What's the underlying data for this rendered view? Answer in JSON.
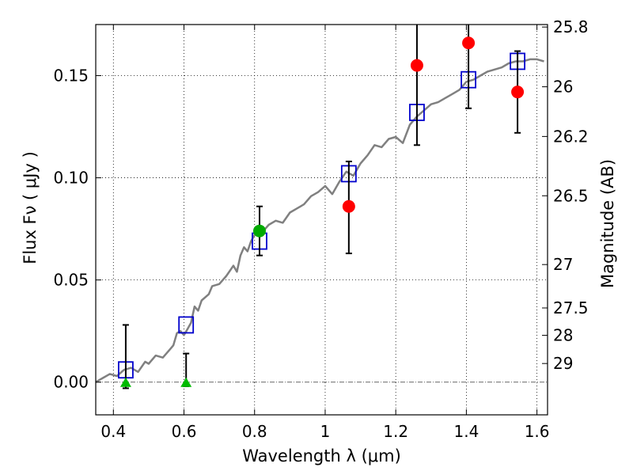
{
  "chart_data": {
    "type": "scatter",
    "title": "",
    "xlabel": "Wavelength  λ (μm)",
    "ylabel_left": "Flux  Fν  ( μJy )",
    "ylabel_right": "Magnitude (AB)",
    "xlim": [
      0.35,
      1.63
    ],
    "ylim": [
      -0.016,
      0.175
    ],
    "grid": true,
    "x_ticks": [
      0.4,
      0.6,
      0.8,
      1.0,
      1.2,
      1.4,
      1.6
    ],
    "x_tick_labels": [
      "0.4",
      "0.6",
      "0.8",
      "1",
      "1.2",
      "1.4",
      "1.6"
    ],
    "y_ticks": [
      0.0,
      0.05,
      0.1,
      0.15
    ],
    "y_tick_labels": [
      "0.00",
      "0.05",
      "0.10",
      "0.15"
    ],
    "right_ticks": [
      {
        "label": "25.8",
        "mag": 25.8
      },
      {
        "label": "26",
        "mag": 26.0
      },
      {
        "label": "26.2",
        "mag": 26.2
      },
      {
        "label": "26.5",
        "mag": 26.5
      },
      {
        "label": "27",
        "mag": 27.0
      },
      {
        "label": "27.5",
        "mag": 27.5
      },
      {
        "label": "28",
        "mag": 28.0
      },
      {
        "label": "29",
        "mag": 29.0
      }
    ],
    "series": [
      {
        "kind": "line",
        "color": "#808080",
        "x": [
          0.35,
          0.37,
          0.39,
          0.41,
          0.43,
          0.45,
          0.47,
          0.49,
          0.5,
          0.52,
          0.54,
          0.56,
          0.57,
          0.58,
          0.59,
          0.6,
          0.61,
          0.62,
          0.63,
          0.64,
          0.65,
          0.67,
          0.68,
          0.7,
          0.72,
          0.74,
          0.75,
          0.76,
          0.77,
          0.78,
          0.79,
          0.8,
          0.82,
          0.84,
          0.86,
          0.88,
          0.9,
          0.92,
          0.94,
          0.96,
          0.98,
          1.0,
          1.02,
          1.04,
          1.06,
          1.08,
          1.1,
          1.12,
          1.14,
          1.16,
          1.18,
          1.2,
          1.22,
          1.24,
          1.26,
          1.28,
          1.3,
          1.32,
          1.34,
          1.36,
          1.38,
          1.4,
          1.42,
          1.44,
          1.46,
          1.48,
          1.5,
          1.52,
          1.54,
          1.56,
          1.58,
          1.6,
          1.62
        ],
        "y": [
          0.0,
          0.002,
          0.004,
          0.003,
          0.006,
          0.007,
          0.005,
          0.01,
          0.009,
          0.013,
          0.012,
          0.016,
          0.018,
          0.024,
          0.025,
          0.023,
          0.026,
          0.029,
          0.037,
          0.035,
          0.04,
          0.043,
          0.047,
          0.048,
          0.052,
          0.057,
          0.054,
          0.062,
          0.066,
          0.064,
          0.069,
          0.072,
          0.073,
          0.077,
          0.079,
          0.078,
          0.083,
          0.085,
          0.087,
          0.091,
          0.093,
          0.096,
          0.092,
          0.098,
          0.103,
          0.101,
          0.107,
          0.111,
          0.116,
          0.115,
          0.119,
          0.12,
          0.117,
          0.126,
          0.13,
          0.133,
          0.136,
          0.137,
          0.139,
          0.141,
          0.143,
          0.147,
          0.148,
          0.15,
          0.152,
          0.153,
          0.154,
          0.156,
          0.157,
          0.157,
          0.158,
          0.158,
          0.157
        ]
      },
      {
        "kind": "squares",
        "color": "#0000cc",
        "x": [
          0.435,
          0.606,
          0.814,
          1.067,
          1.26,
          1.406,
          1.545
        ],
        "y": [
          0.006,
          0.028,
          0.069,
          0.102,
          0.132,
          0.148,
          0.157
        ]
      },
      {
        "kind": "errorbars",
        "color": "#000000",
        "points": [
          {
            "x": 0.435,
            "lo": -0.003,
            "hi": 0.028
          },
          {
            "x": 0.606,
            "lo": -0.002,
            "hi": 0.014
          },
          {
            "x": 0.814,
            "lo": 0.062,
            "hi": 0.086
          },
          {
            "x": 1.067,
            "lo": 0.063,
            "hi": 0.108
          },
          {
            "x": 1.26,
            "lo": 0.116,
            "hi": 0.176
          },
          {
            "x": 1.406,
            "lo": 0.134,
            "hi": 0.176
          },
          {
            "x": 1.545,
            "lo": 0.122,
            "hi": 0.162
          }
        ]
      },
      {
        "kind": "circles",
        "color": "#ff0000",
        "x": [
          1.067,
          1.26,
          1.406,
          1.545
        ],
        "y": [
          0.086,
          0.155,
          0.166,
          0.142
        ]
      },
      {
        "kind": "circles",
        "color": "#00aa00",
        "x": [
          0.814
        ],
        "y": [
          0.074
        ]
      },
      {
        "kind": "triangles",
        "color": "#00bb00",
        "x": [
          0.435,
          0.606
        ],
        "y": [
          0.0,
          0.0
        ]
      }
    ]
  }
}
